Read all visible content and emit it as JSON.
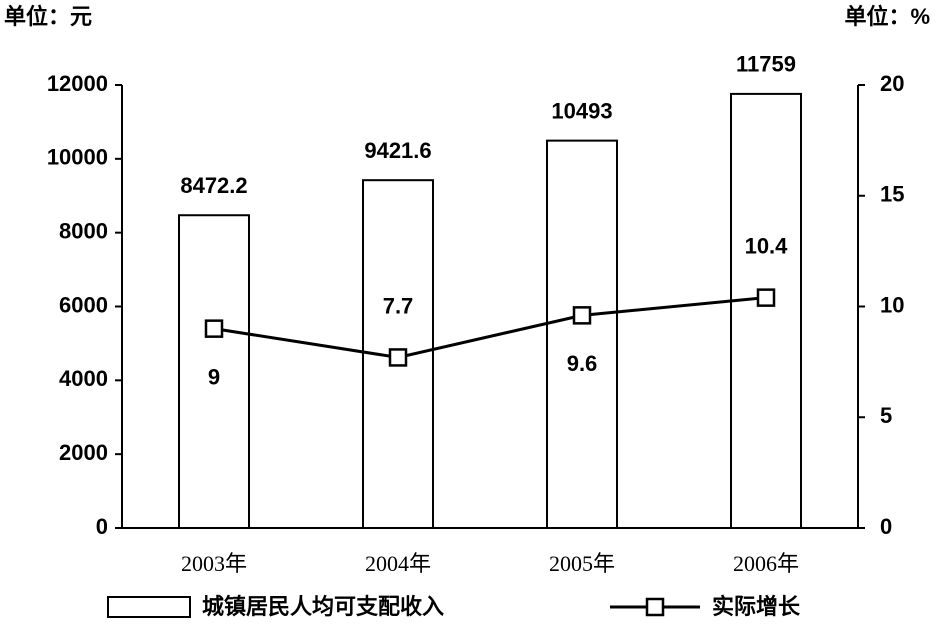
{
  "chart_data": {
    "type": "bar",
    "y_unit_label": "单位：元",
    "y2_unit_label": "单位：%",
    "categories": [
      "2003年",
      "2004年",
      "2005年",
      "2006年"
    ],
    "series": [
      {
        "name": "城镇居民人均可支配收入",
        "type": "bar",
        "color": "#ffffff",
        "values": [
          8472.2,
          9421.6,
          10493,
          11759
        ]
      },
      {
        "name": "实际增长",
        "type": "line",
        "axis": "y2",
        "color": "#000000",
        "values": [
          9,
          7.7,
          9.6,
          10.4
        ]
      }
    ],
    "ylim": [
      0,
      12000
    ],
    "yticks": [
      0,
      2000,
      4000,
      6000,
      8000,
      10000,
      12000
    ],
    "y2lim": [
      0,
      20
    ],
    "y2ticks": [
      0,
      5,
      10,
      15,
      20
    ],
    "grid": false
  }
}
